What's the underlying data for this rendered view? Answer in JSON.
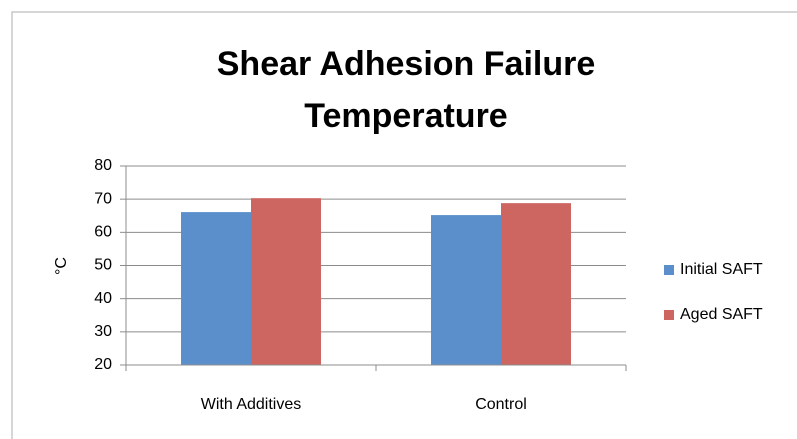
{
  "chart_data": {
    "type": "bar",
    "title": "Shear Adhesion Failure Temperature",
    "y_label": "°C",
    "categories": [
      "With Additives",
      "Control"
    ],
    "series": [
      {
        "name": "Initial SAFT",
        "color": "#5b8fcc",
        "values": [
          66.1,
          65.2
        ]
      },
      {
        "name": "Aged SAFT",
        "color": "#cd6560",
        "values": [
          70.3,
          68.8
        ]
      }
    ],
    "ylim": [
      20,
      80
    ],
    "yticks": [
      20,
      30,
      40,
      50,
      60,
      70,
      80
    ],
    "grid": true,
    "legend": "right"
  }
}
